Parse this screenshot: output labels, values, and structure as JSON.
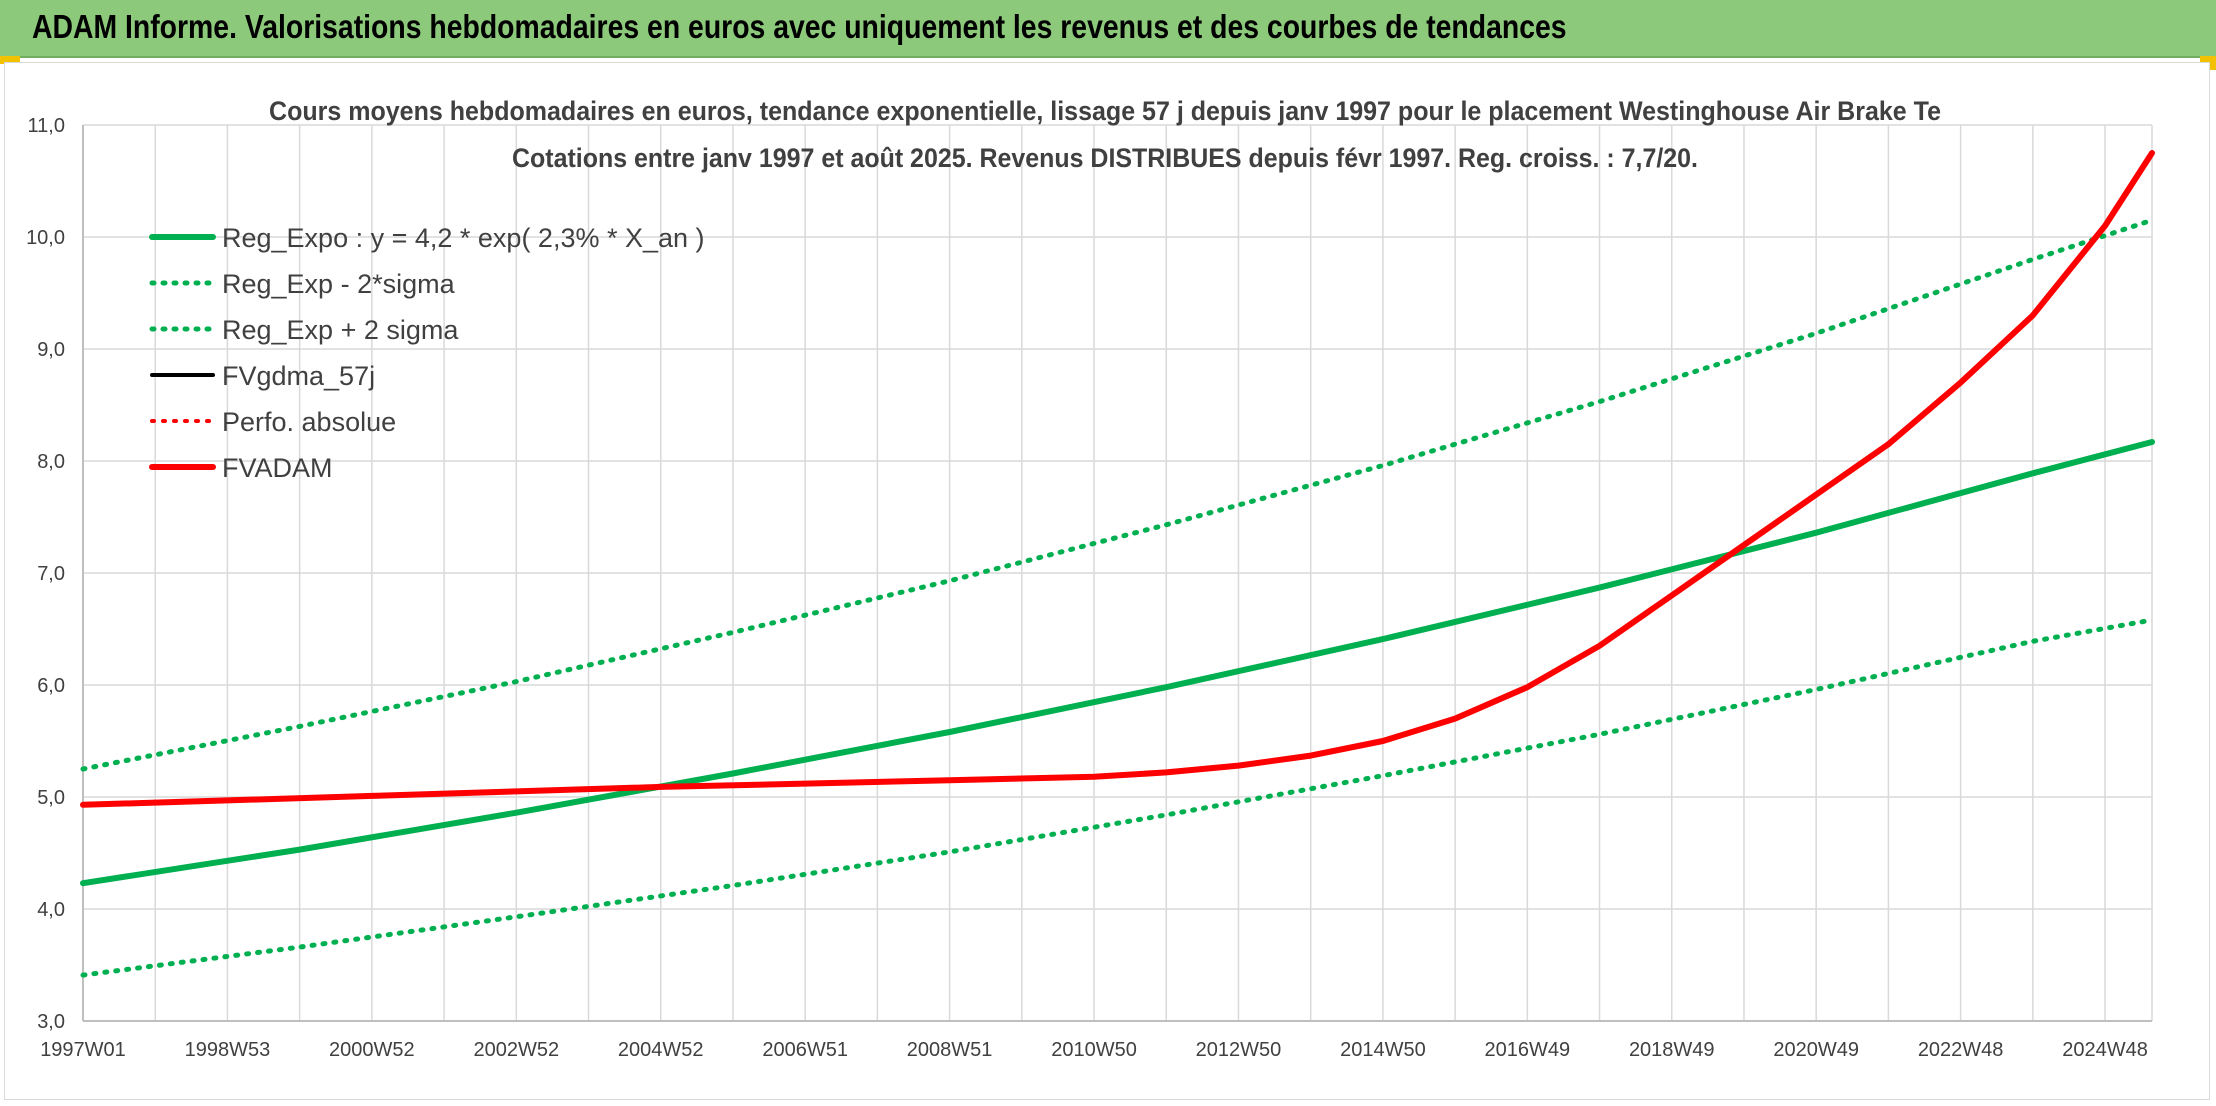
{
  "banner": {
    "title": "ADAM Informe. Valorisations hebdomadaires en euros avec uniquement les revenus et des courbes de tendances"
  },
  "colors": {
    "banner_bg": "#8cc97a",
    "green": "#00b050",
    "red": "#ff0000",
    "black": "#000000",
    "grid": "#d9d9d9",
    "text": "#404040"
  },
  "chart_data": {
    "type": "line",
    "title_lines": [
      "Cours moyens hebdomadaires en euros, tendance exponentielle, lissage 57 j depuis janv 1997 pour le placement Westinghouse Air Brake Te",
      "Cotations entre janv 1997 et août 2025. Revenus DISTRIBUES depuis févr 1997. Reg. croiss. : 7,7/20."
    ],
    "xlabel": "",
    "ylabel": "",
    "ylim": [
      3.0,
      11.0
    ],
    "yticks": [
      "3,0",
      "4,0",
      "5,0",
      "6,0",
      "7,0",
      "8,0",
      "9,0",
      "10,0",
      "11,0"
    ],
    "xlim": [
      1997.0,
      2025.65
    ],
    "xticks": [
      {
        "label": "1997W01",
        "x": 1997.0
      },
      {
        "label": "1998W53",
        "x": 1999.0
      },
      {
        "label": "2000W52",
        "x": 2001.0
      },
      {
        "label": "2002W52",
        "x": 2003.0
      },
      {
        "label": "2004W52",
        "x": 2005.0
      },
      {
        "label": "2006W51",
        "x": 2007.0
      },
      {
        "label": "2008W51",
        "x": 2009.0
      },
      {
        "label": "2010W50",
        "x": 2011.0
      },
      {
        "label": "2012W50",
        "x": 2013.0
      },
      {
        "label": "2014W50",
        "x": 2015.0
      },
      {
        "label": "2016W49",
        "x": 2017.0
      },
      {
        "label": "2018W49",
        "x": 2019.0
      },
      {
        "label": "2020W49",
        "x": 2021.0
      },
      {
        "label": "2022W48",
        "x": 2023.0
      },
      {
        "label": "2024W48",
        "x": 2025.0
      }
    ],
    "grid": true,
    "legend_position": "top-left",
    "series": [
      {
        "name": "Reg_Expo : y = 4,2 * exp( 2,3% *  X_an )",
        "color": "#00b050",
        "style": "solid",
        "width": 6,
        "x": [
          1997.0,
          2000.0,
          2003.0,
          2006.0,
          2009.0,
          2012.0,
          2015.0,
          2018.0,
          2021.0,
          2024.0,
          2025.65
        ],
        "y": [
          4.23,
          4.53,
          4.86,
          5.21,
          5.58,
          5.98,
          6.41,
          6.87,
          7.36,
          7.89,
          8.17
        ]
      },
      {
        "name": "Reg_Exp - 2*sigma",
        "color": "#00b050",
        "style": "dotted",
        "width": 5,
        "x": [
          1997.0,
          2000.0,
          2003.0,
          2006.0,
          2009.0,
          2012.0,
          2015.0,
          2018.0,
          2021.0,
          2024.0,
          2025.65
        ],
        "y": [
          3.41,
          3.66,
          3.93,
          4.21,
          4.51,
          4.84,
          5.19,
          5.56,
          5.96,
          6.39,
          6.58
        ]
      },
      {
        "name": "Reg_Exp + 2 sigma",
        "color": "#00b050",
        "style": "dotted",
        "width": 5,
        "x": [
          1997.0,
          2000.0,
          2003.0,
          2006.0,
          2009.0,
          2012.0,
          2015.0,
          2018.0,
          2021.0,
          2024.0,
          2025.65
        ],
        "y": [
          5.25,
          5.63,
          6.03,
          6.47,
          6.93,
          7.43,
          7.96,
          8.53,
          9.14,
          9.8,
          10.15
        ]
      },
      {
        "name": "FVgdma_57j",
        "color": "#000000",
        "style": "solid",
        "width": 4,
        "x": [
          1997.0,
          1999.0,
          2001.0,
          2003.0,
          2005.0,
          2007.0,
          2009.0,
          2011.0,
          2012.0,
          2013.0,
          2014.0,
          2015.0,
          2016.0,
          2017.0,
          2018.0,
          2019.0,
          2020.0,
          2021.0,
          2022.0,
          2023.0,
          2024.0,
          2025.0,
          2025.65
        ],
        "y": [
          4.93,
          4.97,
          5.01,
          5.05,
          5.09,
          5.12,
          5.15,
          5.18,
          5.22,
          5.28,
          5.37,
          5.5,
          5.7,
          5.98,
          6.35,
          6.8,
          7.25,
          7.7,
          8.15,
          8.7,
          9.3,
          10.1,
          10.75
        ]
      },
      {
        "name": "Perfo. absolue",
        "color": "#ff0000",
        "style": "dotted",
        "width": 4,
        "x": [
          1997.0,
          1999.0,
          2001.0,
          2003.0,
          2005.0,
          2007.0,
          2009.0,
          2011.0,
          2012.0,
          2013.0,
          2014.0,
          2015.0,
          2016.0,
          2017.0,
          2018.0,
          2019.0,
          2020.0,
          2021.0,
          2022.0,
          2023.0,
          2024.0,
          2025.0,
          2025.65
        ],
        "y": [
          4.93,
          4.97,
          5.01,
          5.05,
          5.09,
          5.12,
          5.15,
          5.18,
          5.22,
          5.28,
          5.37,
          5.5,
          5.7,
          5.98,
          6.35,
          6.8,
          7.25,
          7.7,
          8.15,
          8.7,
          9.3,
          10.1,
          10.75
        ]
      },
      {
        "name": "FVADAM",
        "color": "#ff0000",
        "style": "solid",
        "width": 6,
        "x": [
          1997.0,
          1999.0,
          2001.0,
          2003.0,
          2005.0,
          2007.0,
          2009.0,
          2011.0,
          2012.0,
          2013.0,
          2014.0,
          2015.0,
          2016.0,
          2017.0,
          2018.0,
          2019.0,
          2020.0,
          2021.0,
          2022.0,
          2023.0,
          2024.0,
          2025.0,
          2025.65
        ],
        "y": [
          4.93,
          4.97,
          5.01,
          5.05,
          5.09,
          5.12,
          5.15,
          5.18,
          5.22,
          5.28,
          5.37,
          5.5,
          5.7,
          5.98,
          6.35,
          6.8,
          7.25,
          7.7,
          8.15,
          8.7,
          9.3,
          10.1,
          10.75
        ]
      }
    ]
  }
}
